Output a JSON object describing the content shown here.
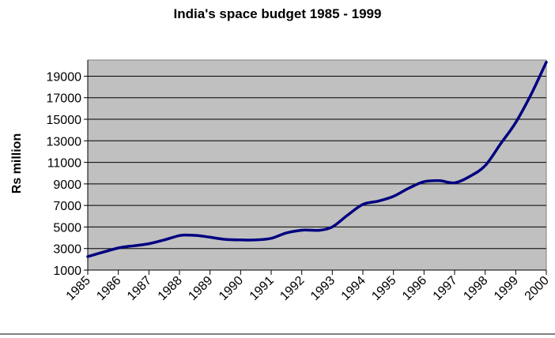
{
  "chart_data": {
    "type": "line",
    "title": "India's space budget 1985 - 1999",
    "xlabel": "",
    "ylabel": "Rs million",
    "x_ticks": [
      "1985",
      "1986",
      "1987",
      "1988",
      "1989",
      "1990",
      "1991",
      "1992",
      "1993",
      "1994",
      "1995",
      "1996",
      "1997",
      "1998",
      "1999",
      "2000"
    ],
    "y_ticks": [
      1000,
      3000,
      5000,
      7000,
      9000,
      11000,
      13000,
      15000,
      17000,
      19000
    ],
    "ylim": [
      1000,
      20500
    ],
    "xlim": [
      1985,
      2000
    ],
    "grid": "horizontal",
    "plot_background": "#c0c0c0",
    "line_color": "#000080",
    "series": [
      {
        "x": [
          1985,
          1986,
          1986.5,
          1987,
          1987.5,
          1988,
          1988.3,
          1988.6,
          1989,
          1989.5,
          1990,
          1990.5,
          1991,
          1991.5,
          1992,
          1992.3,
          1992.6,
          1993,
          1993.5,
          1994,
          1994.5,
          1995,
          1995.5,
          1996,
          1996.5,
          1997,
          1997.5,
          1998,
          1998.5,
          1999,
          1999.5,
          2000
        ],
        "y": [
          2250,
          3050,
          3250,
          3450,
          3800,
          4200,
          4250,
          4200,
          4050,
          3850,
          3800,
          3800,
          3950,
          4450,
          4700,
          4700,
          4700,
          5000,
          6100,
          7100,
          7400,
          7850,
          8600,
          9200,
          9300,
          9100,
          9700,
          10700,
          12700,
          14700,
          17300,
          20300
        ]
      }
    ]
  }
}
